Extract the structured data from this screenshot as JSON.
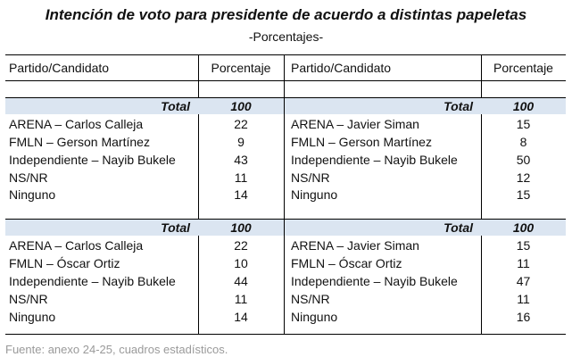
{
  "title": "Intención de voto para presidente de acuerdo a distintas papeletas",
  "subtitle": "-Porcentajes-",
  "headers": {
    "left_candidate": "Partido/Candidato",
    "left_percent": "Porcentaje",
    "right_candidate": "Partido/Candidato",
    "right_percent": "Porcentaje"
  },
  "blocks": [
    {
      "left": {
        "total_label": "Total",
        "total_value": "100",
        "rows": [
          {
            "name": "ARENA – Carlos Calleja",
            "value": "22"
          },
          {
            "name": "FMLN – Gerson Martínez",
            "value": "9"
          },
          {
            "name": "Independiente – Nayib Bukele",
            "value": "43"
          },
          {
            "name": "NS/NR",
            "value": "11"
          },
          {
            "name": "Ninguno",
            "value": "14"
          }
        ]
      },
      "right": {
        "total_label": "Total",
        "total_value": "100",
        "rows": [
          {
            "name": "ARENA – Javier Siman",
            "value": "15"
          },
          {
            "name": "FMLN – Gerson Martínez",
            "value": "8"
          },
          {
            "name": "Independiente – Nayib Bukele",
            "value": "50"
          },
          {
            "name": "NS/NR",
            "value": "12"
          },
          {
            "name": "Ninguno",
            "value": "15"
          }
        ]
      }
    },
    {
      "left": {
        "total_label": "Total",
        "total_value": "100",
        "rows": [
          {
            "name": "ARENA – Carlos Calleja",
            "value": "22"
          },
          {
            "name": "FMLN – Óscar Ortiz",
            "value": "10"
          },
          {
            "name": "Independiente – Nayib Bukele",
            "value": "44"
          },
          {
            "name": "NS/NR",
            "value": "11"
          },
          {
            "name": "Ninguno",
            "value": "14"
          }
        ]
      },
      "right": {
        "total_label": "Total",
        "total_value": "100",
        "rows": [
          {
            "name": "ARENA – Javier Siman",
            "value": "15"
          },
          {
            "name": "FMLN – Óscar Ortiz",
            "value": "11"
          },
          {
            "name": "Independiente – Nayib Bukele",
            "value": "47"
          },
          {
            "name": "NS/NR",
            "value": "11"
          },
          {
            "name": "Ninguno",
            "value": "16"
          }
        ]
      }
    }
  ],
  "source": "Fuente: anexo 24-25, cuadros estadísticos.",
  "colors": {
    "total_band": "#dbe5f1",
    "source_text": "#9a9a9a"
  }
}
